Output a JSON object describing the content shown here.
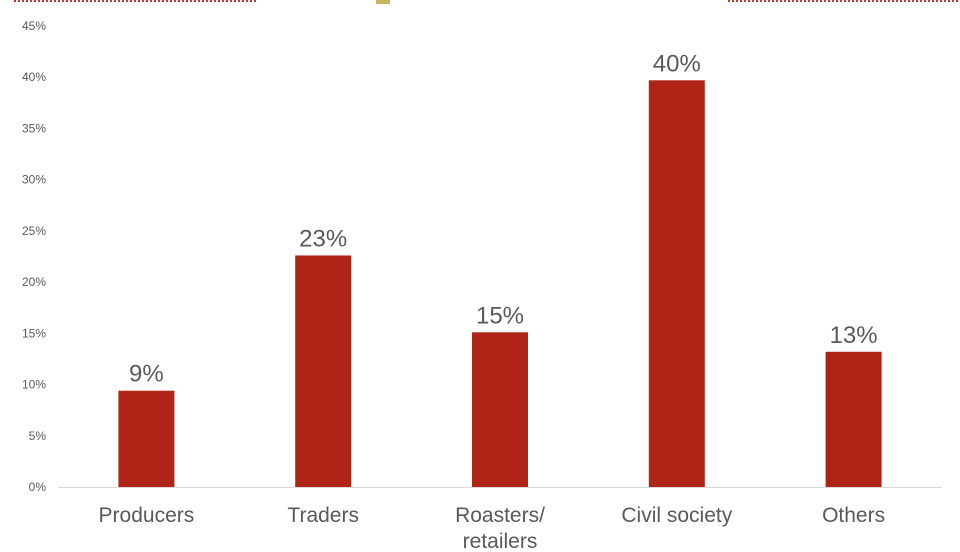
{
  "chart_data": {
    "type": "bar",
    "categories": [
      "Producers",
      "Traders",
      "Roasters/\nretailers",
      "Civil society",
      "Others"
    ],
    "values": [
      9.4,
      22.6,
      15.1,
      39.7,
      13.2
    ],
    "data_labels": [
      "9%",
      "23%",
      "15%",
      "40%",
      "13%"
    ],
    "ylim": [
      0,
      45
    ],
    "y_ticks": [
      0,
      5,
      10,
      15,
      20,
      25,
      30,
      35,
      40,
      45
    ],
    "y_tick_format": "{v}%",
    "title": "",
    "xlabel": "",
    "ylabel": "",
    "grid": false,
    "legend": "none"
  },
  "colors": {
    "bar": "#b02418",
    "text": "#595959",
    "axis": "#d9d9d9",
    "deco_red": "#c0392b",
    "deco_olive": "#c8b560"
  }
}
